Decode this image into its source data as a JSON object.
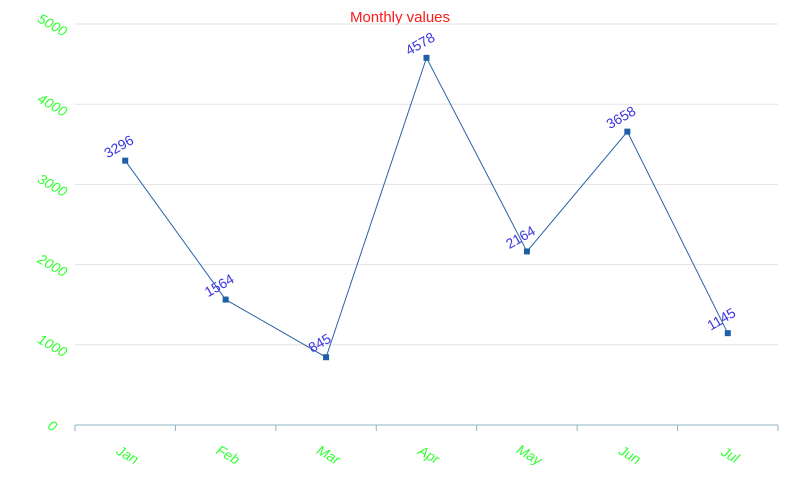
{
  "chart_data": {
    "type": "line",
    "title": "Monthly values",
    "categories": [
      "Jan",
      "Feb",
      "Mar",
      "Apr",
      "May",
      "Jun",
      "Jul"
    ],
    "values": [
      3296,
      1564,
      845,
      4578,
      2164,
      3658,
      1145
    ],
    "ylim": [
      0,
      5000
    ],
    "yticks": [
      0,
      1000,
      2000,
      3000,
      4000,
      5000
    ],
    "grid": true,
    "colors": {
      "title": "#ff1a1a",
      "tick_labels": "#33ff33",
      "line": "#2a63a8",
      "points": "#1f5fa8",
      "data_labels": "#3b35e0",
      "grid": "#e3e3e3",
      "axis": "#8fb5c6"
    }
  }
}
